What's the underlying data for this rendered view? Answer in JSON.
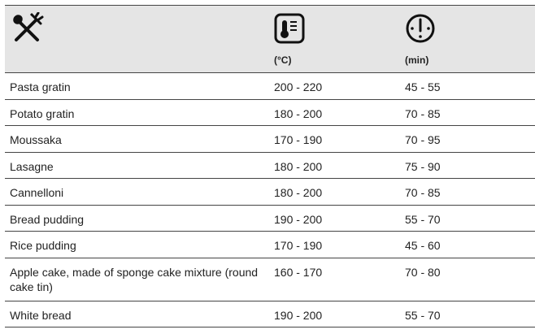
{
  "header": {
    "temp_unit": "(°C)",
    "time_unit": "(min)",
    "icons": [
      "cutlery-icon",
      "thermometer-icon",
      "clock-icon"
    ]
  },
  "rows": [
    {
      "dish": "Pasta gratin",
      "temp": "200 - 220",
      "time": "45 - 55"
    },
    {
      "dish": "Potato gratin",
      "temp": "180 - 200",
      "time": "70 - 85"
    },
    {
      "dish": "Moussaka",
      "temp": "170 - 190",
      "time": "70 - 95"
    },
    {
      "dish": "Lasagne",
      "temp": "180 - 200",
      "time": "75 - 90"
    },
    {
      "dish": "Cannelloni",
      "temp": "180 - 200",
      "time": "70 - 85"
    },
    {
      "dish": "Bread pudding",
      "temp": "190 - 200",
      "time": "55 - 70"
    },
    {
      "dish": "Rice pudding",
      "temp": "170 - 190",
      "time": "45 - 60"
    },
    {
      "dish": "Apple cake, made of sponge cake mixture (round cake tin)",
      "temp": "160 - 170",
      "time": "70 - 80"
    },
    {
      "dish": "White bread",
      "temp": "190 - 200",
      "time": "55 - 70"
    }
  ]
}
